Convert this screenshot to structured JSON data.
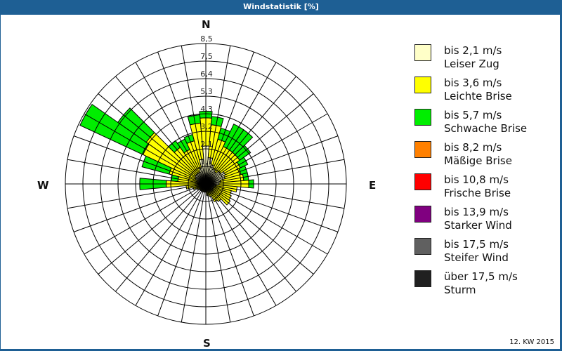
{
  "window": {
    "title": "Windstatistik [%]"
  },
  "footer": {
    "period": "12. KW 2015"
  },
  "compass": {
    "north": "N",
    "east": "E",
    "south": "S",
    "west": "W"
  },
  "legend": [
    {
      "range": "bis 2,1 m/s",
      "name": "Leiser Zug",
      "color": "#ffffc8"
    },
    {
      "range": "bis 3,6 m/s",
      "name": "Leichte Brise",
      "color": "#ffff00"
    },
    {
      "range": "bis 5,7 m/s",
      "name": "Schwache Brise",
      "color": "#00ee00"
    },
    {
      "range": "bis 8,2 m/s",
      "name": "Mäßige Brise",
      "color": "#ff8000"
    },
    {
      "range": "bis 10,8 m/s",
      "name": "Frische Brise",
      "color": "#ff0000"
    },
    {
      "range": "bis 13,9 m/s",
      "name": "Starker Wind",
      "color": "#800080"
    },
    {
      "range": "bis 17,5 m/s",
      "name": "Steifer Wind",
      "color": "#606060"
    },
    {
      "range": "über 17,5 m/s",
      "name": "Sturm",
      "color": "#202020"
    }
  ],
  "chart_data": {
    "type": "polar-stacked-bar",
    "title": "Windstatistik [%]",
    "subtitle": "12. KW 2015",
    "radial_unit": "%",
    "radial_ticks": [
      "1,1",
      "2,1",
      "3,2",
      "4,3",
      "5,3",
      "6,4",
      "7,5",
      "8,5"
    ],
    "radial_max": 8.5,
    "angle_step_deg": 10,
    "directions_deg": [
      0,
      10,
      20,
      30,
      40,
      50,
      60,
      70,
      80,
      90,
      100,
      110,
      120,
      130,
      140,
      150,
      160,
      170,
      180,
      190,
      200,
      210,
      220,
      230,
      240,
      250,
      260,
      270,
      280,
      290,
      300,
      310,
      320,
      330,
      340,
      350
    ],
    "series": [
      {
        "name": "bis 2,1 m/s",
        "values": [
          2.3,
          1.6,
          1.2,
          1.0,
          0.9,
          1.1,
          1.3,
          1.2,
          0.9,
          0.8,
          0.6,
          0.5,
          0.5,
          0.5,
          0.4,
          0.3,
          0.2,
          0.2,
          0.1,
          0.2,
          0.3,
          0.3,
          0.3,
          0.3,
          0.3,
          0.3,
          0.3,
          0.4,
          0.4,
          0.5,
          0.7,
          0.8,
          0.8,
          0.8,
          1.0,
          1.5
        ]
      },
      {
        "name": "bis 3,6 m/s",
        "values": [
          1.7,
          2.0,
          1.6,
          1.5,
          1.6,
          1.4,
          1.0,
          1.0,
          1.4,
          1.8,
          1.3,
          1.1,
          1.2,
          1.3,
          0.9,
          0.9,
          0.6,
          0.5,
          0.3,
          0.3,
          0.2,
          0.2,
          0.2,
          0.2,
          0.3,
          0.5,
          0.9,
          2.0,
          1.3,
          1.8,
          3.5,
          3.6,
          1.9,
          1.5,
          1.7,
          2.2
        ]
      },
      {
        "name": "bis 5,7 m/s",
        "values": [
          0.4,
          0.5,
          0.7,
          1.5,
          1.5,
          0.8,
          0.5,
          0.4,
          0.3,
          0.3,
          0.0,
          0.0,
          0.0,
          0.0,
          0.0,
          0.0,
          0.0,
          0.0,
          0.0,
          0.0,
          0.0,
          0.0,
          0.0,
          0.0,
          0.0,
          0.0,
          0.0,
          1.6,
          0.4,
          1.7,
          4.2,
          2.1,
          0.5,
          0.7,
          0.4,
          0.5
        ]
      },
      {
        "name": "bis 8,2 m/s",
        "values": [
          0,
          0,
          0,
          0,
          0,
          0,
          0,
          0,
          0,
          0,
          0,
          0,
          0,
          0,
          0,
          0,
          0,
          0,
          0,
          0,
          0,
          0,
          0,
          0,
          0,
          0,
          0,
          0,
          0,
          0,
          0,
          0,
          0,
          0,
          0,
          0
        ]
      },
      {
        "name": "bis 10,8 m/s",
        "values": [
          0,
          0,
          0,
          0,
          0,
          0,
          0,
          0,
          0,
          0,
          0,
          0,
          0,
          0,
          0,
          0,
          0,
          0,
          0,
          0,
          0,
          0,
          0,
          0,
          0,
          0,
          0,
          0,
          0,
          0,
          0,
          0,
          0,
          0,
          0,
          0
        ]
      },
      {
        "name": "bis 13,9 m/s",
        "values": [
          0,
          0,
          0,
          0,
          0,
          0,
          0,
          0,
          0,
          0,
          0,
          0,
          0,
          0,
          0,
          0,
          0,
          0,
          0,
          0,
          0,
          0,
          0,
          0,
          0,
          0,
          0,
          0,
          0,
          0,
          0,
          0,
          0,
          0,
          0,
          0
        ]
      },
      {
        "name": "bis 17,5 m/s",
        "values": [
          0,
          0,
          0,
          0,
          0,
          0,
          0,
          0,
          0,
          0,
          0,
          0,
          0,
          0,
          0,
          0,
          0,
          0,
          0,
          0,
          0,
          0,
          0,
          0,
          0,
          0,
          0,
          0,
          0,
          0,
          0,
          0,
          0,
          0,
          0,
          0
        ]
      },
      {
        "name": "über 17,5 m/s",
        "values": [
          0,
          0,
          0,
          0,
          0,
          0,
          0,
          0,
          0,
          0,
          0,
          0,
          0,
          0,
          0,
          0,
          0,
          0,
          0,
          0,
          0,
          0,
          0,
          0,
          0,
          0,
          0,
          0,
          0,
          0,
          0,
          0,
          0,
          0,
          0,
          0
        ]
      }
    ],
    "legend_position": "right",
    "grid": true
  }
}
